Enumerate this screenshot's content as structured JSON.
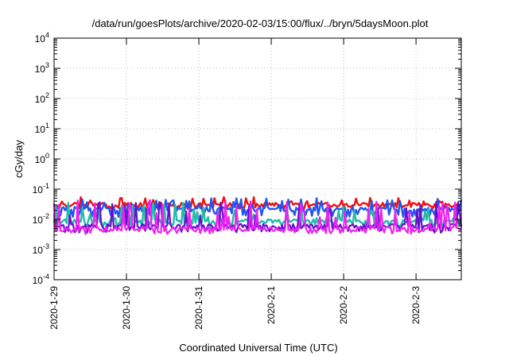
{
  "chart_data": {
    "type": "line",
    "title": "/data/run/goesPlots/archive/2020-02-03/15:00/flux/../bryn/5daysMoon.plot",
    "xlabel": "Coordinated Universal Time (UTC)",
    "ylabel": "cGy/day",
    "yscale": "log",
    "ylim": [
      0.0001,
      10000
    ],
    "xlim": [
      "2020-01-29T00:00",
      "2020-02-03T15:00"
    ],
    "grid": true,
    "x_ticks": [
      "2020-1-29",
      "2020-1-30",
      "2020-1-31",
      "2020-2-1",
      "2020-2-2",
      "2020-2-3"
    ],
    "y_ticks": [
      {
        "base": "10",
        "exp": "4",
        "value": 10000
      },
      {
        "base": "10",
        "exp": "3",
        "value": 1000
      },
      {
        "base": "10",
        "exp": "2",
        "value": 100
      },
      {
        "base": "10",
        "exp": "1",
        "value": 10
      },
      {
        "base": "10",
        "exp": "0",
        "value": 1
      },
      {
        "base": "10",
        "exp": "-1",
        "value": 0.1
      },
      {
        "base": "10",
        "exp": "-2",
        "value": 0.01
      },
      {
        "base": "10",
        "exp": "-3",
        "value": 0.001
      },
      {
        "base": "10",
        "exp": "-4",
        "value": 0.0001
      }
    ],
    "series": [
      {
        "color": "#ee1111",
        "baseline": 0.03,
        "spike": 0.055,
        "dip": 0.024,
        "seed": 3
      },
      {
        "color": "#2255ee",
        "baseline": 0.022,
        "spike": 0.05,
        "dip": 0.014,
        "seed": 7
      },
      {
        "color": "#22bbaa",
        "baseline": 0.0085,
        "spike": 0.035,
        "dip": 0.006,
        "seed": 11
      },
      {
        "color": "#6611cc",
        "baseline": 0.006,
        "spike": 0.04,
        "dip": 0.0042,
        "seed": 13
      },
      {
        "color": "#ee22ee",
        "baseline": 0.0048,
        "spike": 0.045,
        "dip": 0.0038,
        "seed": 17
      }
    ]
  }
}
